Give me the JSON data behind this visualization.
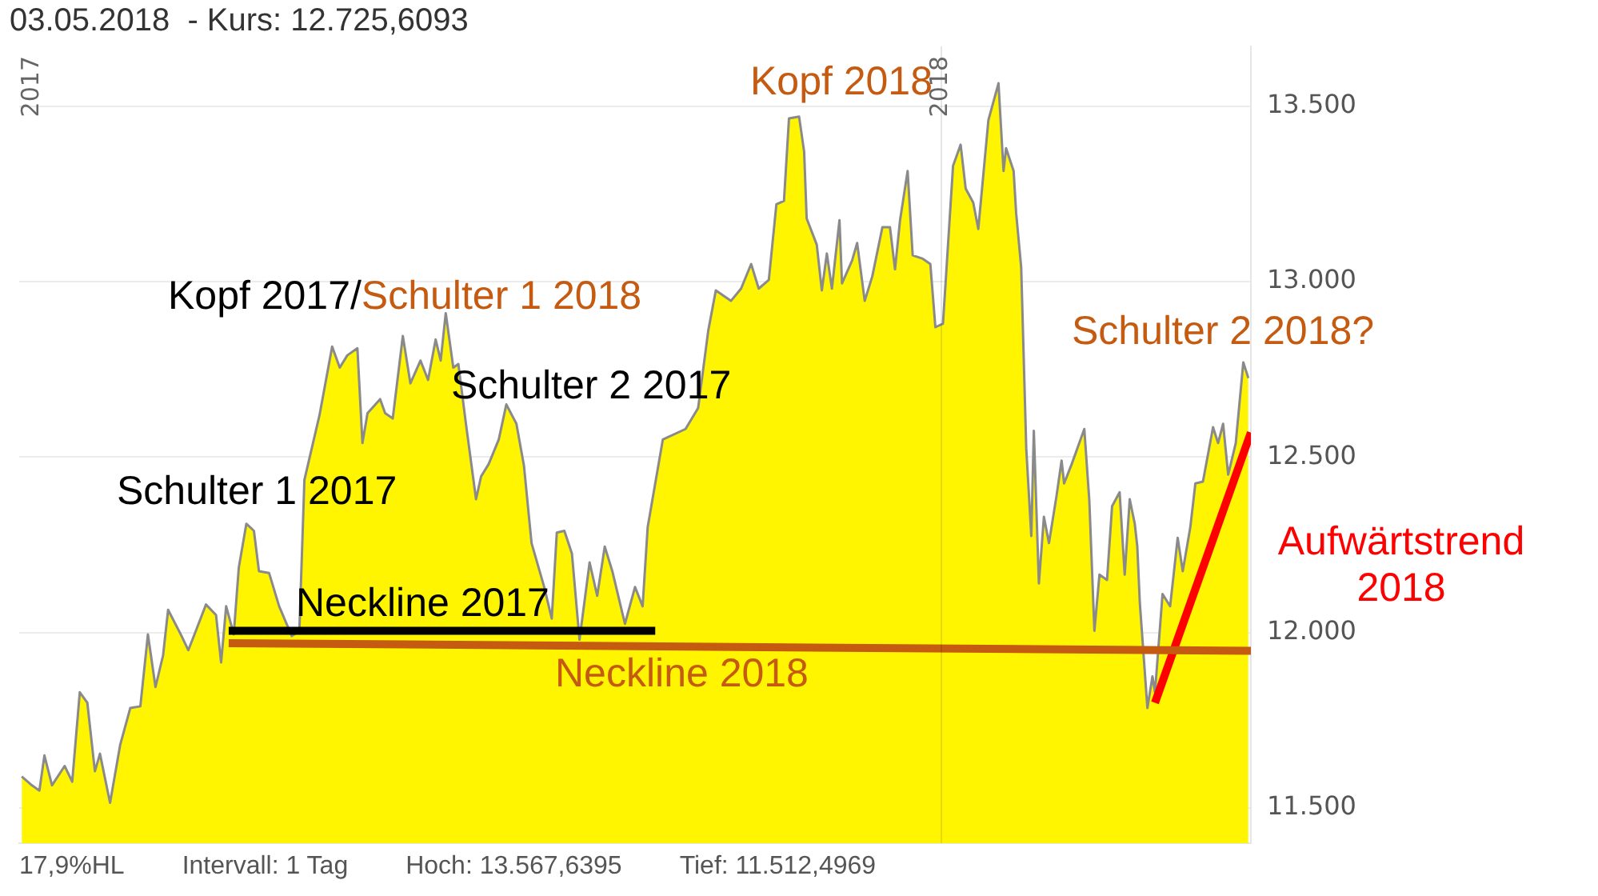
{
  "chart_data": {
    "type": "area",
    "title": "03.05.2018  - Kurs: 12.725,6093",
    "xlim": [
      "2017-01-01",
      "2018-05-04"
    ],
    "xticks": [
      "2017",
      "2018"
    ],
    "ylim": [
      11400,
      13670
    ],
    "yticks": [
      {
        "value": 11500,
        "label": "11.500"
      },
      {
        "value": 12000,
        "label": "12.000"
      },
      {
        "value": 12500,
        "label": "12.500"
      },
      {
        "value": 13000,
        "label": "13.000"
      },
      {
        "value": 13500,
        "label": "13.500"
      }
    ],
    "grid": "y",
    "ref_lines": [
      {
        "axis": "x",
        "value": "2018"
      }
    ],
    "series": [
      {
        "color": "#fff500",
        "x": [
          "2017-01-02",
          "2017-01-06",
          "2017-01-09",
          "2017-01-11",
          "2017-01-14",
          "2017-01-19",
          "2017-01-22",
          "2017-01-25",
          "2017-01-28",
          "2017-01-31",
          "2017-02-02",
          "2017-02-06",
          "2017-02-10",
          "2017-02-14",
          "2017-02-18",
          "2017-02-21",
          "2017-02-24",
          "2017-02-27",
          "2017-03-01",
          "2017-03-06",
          "2017-03-09",
          "2017-03-12",
          "2017-03-16",
          "2017-03-20",
          "2017-03-22",
          "2017-03-24",
          "2017-03-27",
          "2017-03-29",
          "2017-04-01",
          "2017-04-04",
          "2017-04-06",
          "2017-04-10",
          "2017-04-14",
          "2017-04-19",
          "2017-04-22",
          "2017-04-24",
          "2017-04-30",
          "2017-05-05",
          "2017-05-08",
          "2017-05-11",
          "2017-05-15",
          "2017-05-17",
          "2017-05-19",
          "2017-05-24",
          "2017-05-26",
          "2017-05-29",
          "2017-06-02",
          "2017-06-05",
          "2017-06-09",
          "2017-06-12",
          "2017-06-15",
          "2017-06-17",
          "2017-06-19",
          "2017-06-22",
          "2017-06-24",
          "2017-06-27",
          "2017-07-01",
          "2017-07-03",
          "2017-07-06",
          "2017-07-10",
          "2017-07-13",
          "2017-07-17",
          "2017-07-20",
          "2017-07-23",
          "2017-07-28",
          "2017-07-31",
          "2017-08-02",
          "2017-08-05",
          "2017-08-08",
          "2017-08-11",
          "2017-08-15",
          "2017-08-18",
          "2017-08-21",
          "2017-08-24",
          "2017-08-29",
          "2017-09-02",
          "2017-09-05",
          "2017-09-07",
          "2017-09-10",
          "2017-09-13",
          "2017-09-22",
          "2017-09-27",
          "2017-10-01",
          "2017-10-04",
          "2017-10-10",
          "2017-10-14",
          "2017-10-18",
          "2017-10-21",
          "2017-10-25",
          "2017-10-28",
          "2017-10-31",
          "2017-11-02",
          "2017-11-06",
          "2017-11-08",
          "2017-11-09",
          "2017-11-13",
          "2017-11-15",
          "2017-11-17",
          "2017-11-19",
          "2017-11-22",
          "2017-11-23",
          "2017-11-27",
          "2017-11-29",
          "2017-12-02",
          "2017-12-05",
          "2017-12-09",
          "2017-12-12",
          "2017-12-14",
          "2017-12-16",
          "2017-12-19",
          "2017-12-21",
          "2017-12-25",
          "2017-12-28",
          "2017-12-30",
          "2018-01-02",
          "2018-01-06",
          "2018-01-09",
          "2018-01-11",
          "2018-01-14",
          "2018-01-16",
          "2018-01-20",
          "2018-01-24",
          "2018-01-26",
          "2018-01-27",
          "2018-01-30",
          "2018-01-31",
          "2018-02-02",
          "2018-02-04",
          "2018-02-06",
          "2018-02-07",
          "2018-02-09",
          "2018-02-11",
          "2018-02-13",
          "2018-02-16",
          "2018-02-18",
          "2018-02-19",
          "2018-02-22",
          "2018-02-25",
          "2018-02-27",
          "2018-03-01",
          "2018-03-03",
          "2018-03-05",
          "2018-03-08",
          "2018-03-10",
          "2018-03-13",
          "2018-03-15",
          "2018-03-17",
          "2018-03-19",
          "2018-03-20",
          "2018-03-21",
          "2018-03-24",
          "2018-03-26",
          "2018-03-27",
          "2018-03-30",
          "2018-04-02",
          "2018-04-05",
          "2018-04-07",
          "2018-04-10",
          "2018-04-12",
          "2018-04-15",
          "2018-04-19",
          "2018-04-21",
          "2018-04-23",
          "2018-04-25",
          "2018-04-28",
          "2018-05-01",
          "2018-05-03"
        ],
        "values": [
          11590,
          11565,
          11550,
          11650,
          11565,
          11620,
          11575,
          11830,
          11800,
          11605,
          11655,
          11515,
          11680,
          11785,
          11790,
          11995,
          11845,
          11935,
          12065,
          11995,
          11950,
          12005,
          12080,
          12050,
          11915,
          12075,
          11995,
          12185,
          12310,
          12290,
          12175,
          12170,
          12075,
          11990,
          12005,
          12435,
          12620,
          12815,
          12755,
          12790,
          12810,
          12540,
          12625,
          12665,
          12625,
          12610,
          12845,
          12710,
          12775,
          12720,
          12835,
          12775,
          12910,
          12755,
          12765,
          12595,
          12380,
          12445,
          12480,
          12550,
          12650,
          12595,
          12475,
          12255,
          12130,
          12040,
          12285,
          12290,
          12225,
          11980,
          12200,
          12105,
          12245,
          12175,
          12025,
          12130,
          12075,
          12300,
          12425,
          12550,
          12580,
          12640,
          12860,
          12975,
          12945,
          12980,
          13050,
          12980,
          13005,
          13220,
          13230,
          13465,
          13470,
          13370,
          13180,
          13105,
          12975,
          13080,
          12980,
          13175,
          12995,
          13060,
          13110,
          12945,
          13015,
          13155,
          13155,
          13035,
          13175,
          13315,
          13075,
          13065,
          13050,
          12870,
          12880,
          13330,
          13390,
          13265,
          13225,
          13150,
          13460,
          13565,
          13315,
          13380,
          13315,
          13195,
          13040,
          12525,
          12275,
          12575,
          12140,
          12330,
          12255,
          12390,
          12490,
          12425,
          12480,
          12540,
          12580,
          12375,
          12005,
          12165,
          12150,
          12360,
          12400,
          12165,
          12380,
          12310,
          12245,
          12085,
          11785,
          11875,
          11830,
          12110,
          12075,
          12270,
          12175,
          12300,
          12425,
          12430,
          12585,
          12540,
          12595,
          12450,
          12540,
          12770,
          12725
        ]
      },
      {
        "type": "line",
        "color": "#000000",
        "x": [
          "2017-03-25",
          "2017-09-10"
        ],
        "values": [
          12005,
          12005
        ]
      },
      {
        "type": "line",
        "color": "#c55a11",
        "x": [
          "2017-03-25",
          "2018-05-04"
        ],
        "values": [
          11970,
          11948
        ]
      },
      {
        "type": "line",
        "color": "#ff0000",
        "x": [
          "2018-03-27",
          "2018-05-04"
        ],
        "values": [
          11800,
          12570
        ]
      }
    ],
    "annotations": [
      "Kopf 2018",
      "Kopf 2017/",
      "Schulter 1 2018",
      "Schulter 2 2017",
      "Schulter 1 2017",
      "Neckline 2017",
      "Neckline 2018",
      "Schulter 2 2018?",
      "Aufwärtstrend\n2018",
      "17,9%HL",
      "Intervall: 1 Tag",
      "Hoch: 13.567,6395",
      "Tief: 11.512,4969"
    ]
  }
}
